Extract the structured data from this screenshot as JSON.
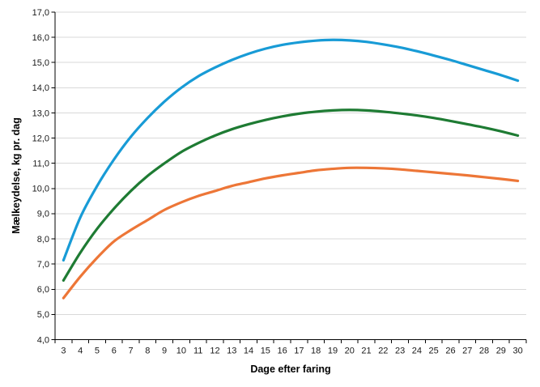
{
  "chart_data": {
    "type": "line",
    "title": "",
    "xlabel": "Dage efter faring",
    "ylabel": "Mælkeydelse, kg pr. dag",
    "x": [
      3,
      4,
      5,
      6,
      7,
      8,
      9,
      10,
      11,
      12,
      13,
      14,
      15,
      16,
      17,
      18,
      19,
      20,
      21,
      22,
      23,
      24,
      25,
      26,
      27,
      28,
      29,
      30
    ],
    "series": [
      {
        "name": "blue",
        "color": "#189BD6",
        "values": [
          7.15,
          8.85,
          10.1,
          11.15,
          12.05,
          12.8,
          13.45,
          14.0,
          14.45,
          14.8,
          15.1,
          15.35,
          15.55,
          15.7,
          15.8,
          15.87,
          15.9,
          15.88,
          15.82,
          15.72,
          15.6,
          15.45,
          15.28,
          15.1,
          14.9,
          14.7,
          14.5,
          14.28
        ]
      },
      {
        "name": "green",
        "color": "#1E7B33",
        "values": [
          6.35,
          7.45,
          8.4,
          9.2,
          9.9,
          10.5,
          11.0,
          11.45,
          11.8,
          12.1,
          12.35,
          12.55,
          12.72,
          12.86,
          12.97,
          13.05,
          13.1,
          13.12,
          13.1,
          13.05,
          12.98,
          12.9,
          12.8,
          12.68,
          12.55,
          12.42,
          12.27,
          12.1
        ]
      },
      {
        "name": "orange",
        "color": "#ED7637",
        "values": [
          5.65,
          6.5,
          7.25,
          7.9,
          8.35,
          8.75,
          9.15,
          9.45,
          9.7,
          9.9,
          10.1,
          10.25,
          10.4,
          10.52,
          10.62,
          10.72,
          10.78,
          10.82,
          10.82,
          10.8,
          10.76,
          10.7,
          10.64,
          10.58,
          10.52,
          10.45,
          10.38,
          10.3
        ]
      }
    ],
    "ylim": [
      4,
      17
    ],
    "y_ticks": [
      {
        "value": 17,
        "label": "17,0"
      },
      {
        "value": 16,
        "label": "16,0"
      },
      {
        "value": 15,
        "label": "15,0"
      },
      {
        "value": 14,
        "label": "14,0"
      },
      {
        "value": 13,
        "label": "13,0"
      },
      {
        "value": 12,
        "label": "12,0"
      },
      {
        "value": 11,
        "label": "11,0"
      },
      {
        "value": 10,
        "label": "10,0"
      },
      {
        "value": 9,
        "label": "9,0"
      },
      {
        "value": 8,
        "label": "8,0"
      },
      {
        "value": 7,
        "label": "7,0"
      },
      {
        "value": 6,
        "label": "6,0"
      },
      {
        "value": 5,
        "label": "5,0"
      },
      {
        "value": 4,
        "label": "4,0"
      }
    ],
    "grid": "horizontal",
    "grid_color": "#D9D9D9",
    "axis_color": "#000000",
    "tick_label_color": "#1A1A1A",
    "legend": "none",
    "background": "#FFFFFF"
  }
}
